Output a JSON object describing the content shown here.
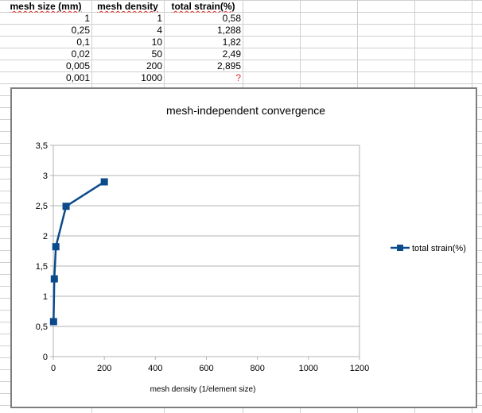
{
  "spreadsheet": {
    "headers": [
      "mesh size (mm)",
      "mesh density",
      "total strain(%)"
    ],
    "rows": [
      [
        "1",
        "1",
        "0,58"
      ],
      [
        "0,25",
        "4",
        "1,288"
      ],
      [
        "0,1",
        "10",
        "1,82"
      ],
      [
        "0,02",
        "50",
        "2,49"
      ],
      [
        "0,005",
        "200",
        "2,895"
      ],
      [
        "0,001",
        "1000",
        "?"
      ]
    ]
  },
  "colors": {
    "series": "#0b4a8b",
    "question_mark": "#e03030",
    "gridlines": "#b3b3b3",
    "frame": "#7f7f7f"
  },
  "chart_data": {
    "type": "line",
    "title": "mesh-independent convergence",
    "xlabel": "mesh density (1/element size)",
    "ylabel": "",
    "xlim": [
      0,
      1200
    ],
    "ylim": [
      0,
      3.5
    ],
    "x_ticks": [
      "0",
      "200",
      "400",
      "600",
      "800",
      "1000",
      "1200"
    ],
    "y_ticks": [
      "0",
      "0,5",
      "1",
      "1,5",
      "2",
      "2,5",
      "3",
      "3,5"
    ],
    "grid": true,
    "legend_position": "right",
    "series": [
      {
        "name": "total strain(%)",
        "x": [
          1,
          4,
          10,
          50,
          200
        ],
        "y": [
          0.58,
          1.288,
          1.82,
          2.49,
          2.895
        ],
        "marker": "square"
      }
    ]
  }
}
